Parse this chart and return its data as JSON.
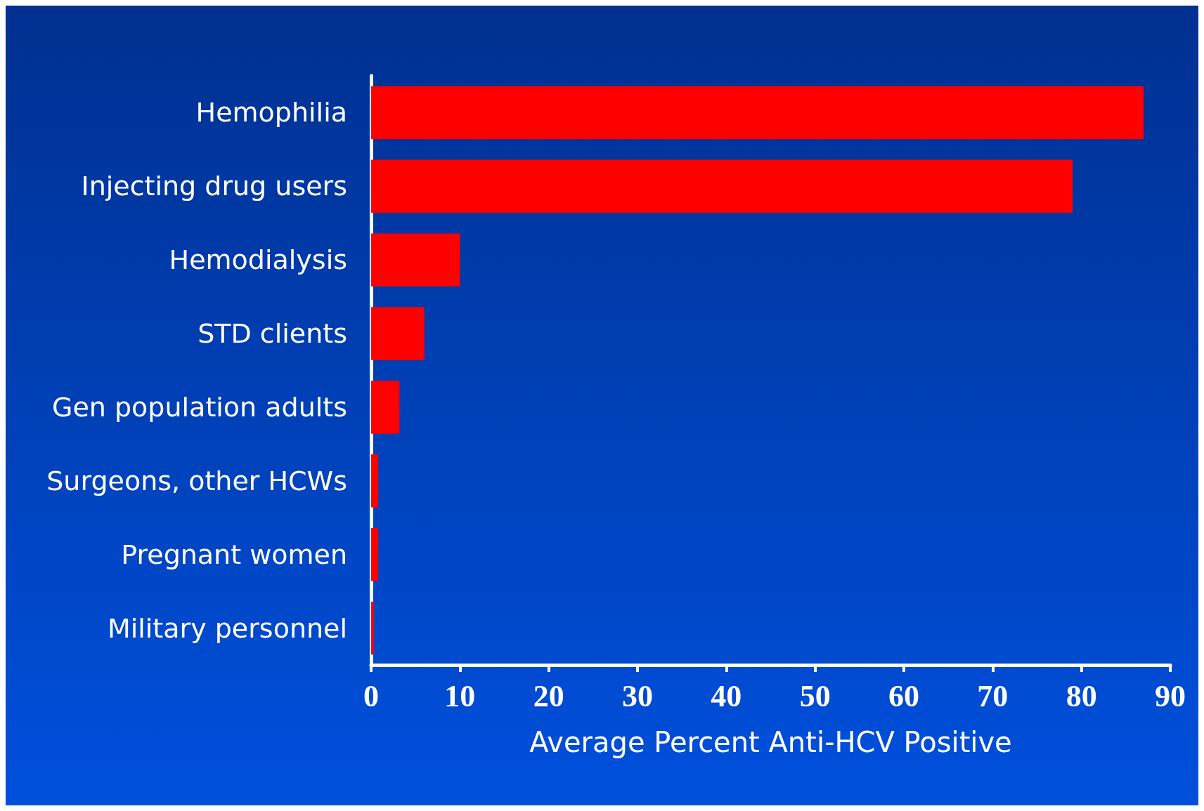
{
  "chart_data": {
    "type": "bar",
    "orientation": "horizontal",
    "xlabel": "Average Percent Anti-HCV Positive",
    "categories": [
      "Hemophilia",
      "Injecting drug users",
      "Hemodialysis",
      "STD clients",
      "Gen population adults",
      "Surgeons, other HCWs",
      "Pregnant women",
      "Military personnel"
    ],
    "values": [
      87,
      79,
      10,
      6,
      3.2,
      0.8,
      0.8,
      0.3
    ],
    "color": "#ff0000",
    "xlim": [
      0,
      90
    ],
    "xticks": [
      0,
      10,
      20,
      30,
      40,
      50,
      60,
      70,
      80,
      90
    ],
    "grid": false
  }
}
